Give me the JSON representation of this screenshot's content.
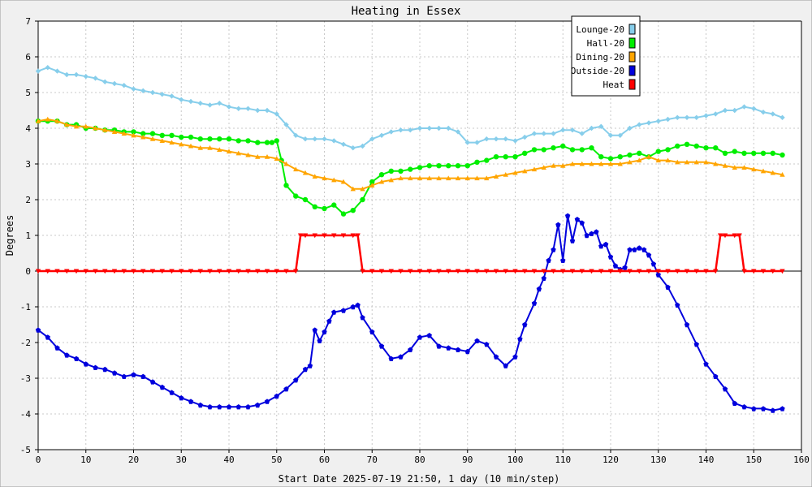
{
  "chart_data": {
    "type": "line",
    "title": "Heating in Essex",
    "xlabel": "Start Date 2025-07-19 21:50, 1 day (10 min/step)",
    "ylabel": "Degrees",
    "xlim": [
      0,
      160
    ],
    "ylim": [
      -5,
      7
    ],
    "xticks": [
      0,
      10,
      20,
      30,
      40,
      50,
      60,
      70,
      80,
      90,
      100,
      110,
      120,
      130,
      140,
      150,
      160
    ],
    "yticks": [
      -5,
      -4,
      -3,
      -2,
      -1,
      0,
      1,
      2,
      3,
      4,
      5,
      6,
      7
    ],
    "grid": true,
    "legend_position": "top-right",
    "series": [
      {
        "name": "Lounge-20",
        "color": "#87ceeb",
        "marker": "diamond",
        "x": [
          0,
          2,
          4,
          6,
          8,
          10,
          12,
          14,
          16,
          18,
          20,
          22,
          24,
          26,
          28,
          30,
          32,
          34,
          36,
          38,
          40,
          42,
          44,
          46,
          48,
          50,
          52,
          54,
          56,
          58,
          60,
          62,
          64,
          66,
          68,
          70,
          72,
          74,
          76,
          78,
          80,
          82,
          84,
          86,
          88,
          90,
          92,
          94,
          96,
          98,
          100,
          102,
          104,
          106,
          108,
          110,
          112,
          114,
          116,
          118,
          120,
          122,
          124,
          126,
          128,
          130,
          132,
          134,
          136,
          138,
          140,
          142,
          144,
          146,
          148,
          150,
          152,
          154,
          156
        ],
        "y": [
          5.6,
          5.7,
          5.6,
          5.5,
          5.5,
          5.45,
          5.4,
          5.3,
          5.25,
          5.2,
          5.1,
          5.05,
          5.0,
          4.95,
          4.9,
          4.8,
          4.75,
          4.7,
          4.65,
          4.7,
          4.6,
          4.55,
          4.55,
          4.5,
          4.5,
          4.4,
          4.1,
          3.8,
          3.7,
          3.7,
          3.7,
          3.65,
          3.55,
          3.45,
          3.5,
          3.7,
          3.8,
          3.9,
          3.95,
          3.95,
          4.0,
          4.0,
          4.0,
          4.0,
          3.9,
          3.6,
          3.6,
          3.7,
          3.7,
          3.7,
          3.65,
          3.75,
          3.85,
          3.85,
          3.85,
          3.95,
          3.95,
          3.85,
          4.0,
          4.05,
          3.8,
          3.8,
          4.0,
          4.1,
          4.15,
          4.2,
          4.25,
          4.3,
          4.3,
          4.3,
          4.35,
          4.4,
          4.5,
          4.5,
          4.6,
          4.55,
          4.45,
          4.4,
          4.3
        ]
      },
      {
        "name": "Hall-20",
        "color": "#00ee00",
        "marker": "circle",
        "x": [
          0,
          2,
          4,
          6,
          8,
          10,
          12,
          14,
          16,
          18,
          20,
          22,
          24,
          26,
          28,
          30,
          32,
          34,
          36,
          38,
          40,
          42,
          44,
          46,
          48,
          49,
          50,
          51,
          52,
          54,
          56,
          58,
          60,
          62,
          64,
          66,
          68,
          70,
          72,
          74,
          76,
          78,
          80,
          82,
          84,
          86,
          88,
          90,
          92,
          94,
          96,
          98,
          100,
          102,
          104,
          106,
          108,
          110,
          112,
          114,
          116,
          118,
          120,
          122,
          124,
          126,
          128,
          130,
          132,
          134,
          136,
          138,
          140,
          142,
          144,
          146,
          148,
          150,
          152,
          154,
          156
        ],
        "y": [
          4.2,
          4.2,
          4.2,
          4.1,
          4.1,
          4.0,
          4.0,
          3.95,
          3.95,
          3.9,
          3.9,
          3.85,
          3.85,
          3.8,
          3.8,
          3.75,
          3.75,
          3.7,
          3.7,
          3.7,
          3.7,
          3.65,
          3.65,
          3.6,
          3.6,
          3.6,
          3.65,
          3.1,
          2.4,
          2.1,
          2.0,
          1.8,
          1.75,
          1.85,
          1.6,
          1.7,
          2.0,
          2.5,
          2.7,
          2.8,
          2.8,
          2.85,
          2.9,
          2.95,
          2.95,
          2.95,
          2.95,
          2.95,
          3.05,
          3.1,
          3.2,
          3.2,
          3.2,
          3.3,
          3.4,
          3.4,
          3.45,
          3.5,
          3.4,
          3.4,
          3.45,
          3.2,
          3.15,
          3.2,
          3.25,
          3.3,
          3.2,
          3.35,
          3.4,
          3.5,
          3.55,
          3.5,
          3.45,
          3.45,
          3.3,
          3.35,
          3.3,
          3.3,
          3.3,
          3.3,
          3.25
        ]
      },
      {
        "name": "Dining-20",
        "color": "#ffa500",
        "marker": "triangle",
        "x": [
          0,
          2,
          4,
          6,
          8,
          10,
          12,
          14,
          16,
          18,
          20,
          22,
          24,
          26,
          28,
          30,
          32,
          34,
          36,
          38,
          40,
          42,
          44,
          46,
          48,
          50,
          52,
          54,
          56,
          58,
          60,
          62,
          64,
          66,
          68,
          70,
          72,
          74,
          76,
          78,
          80,
          82,
          84,
          86,
          88,
          90,
          92,
          94,
          96,
          98,
          100,
          102,
          104,
          106,
          108,
          110,
          112,
          114,
          116,
          118,
          120,
          122,
          124,
          126,
          128,
          130,
          132,
          134,
          136,
          138,
          140,
          142,
          144,
          146,
          148,
          150,
          152,
          154,
          156
        ],
        "y": [
          4.2,
          4.25,
          4.2,
          4.1,
          4.05,
          4.05,
          4.0,
          3.95,
          3.9,
          3.85,
          3.8,
          3.75,
          3.7,
          3.65,
          3.6,
          3.55,
          3.5,
          3.45,
          3.45,
          3.4,
          3.35,
          3.3,
          3.25,
          3.2,
          3.2,
          3.15,
          3.0,
          2.85,
          2.75,
          2.65,
          2.6,
          2.55,
          2.5,
          2.3,
          2.3,
          2.4,
          2.5,
          2.55,
          2.6,
          2.6,
          2.6,
          2.6,
          2.6,
          2.6,
          2.6,
          2.6,
          2.6,
          2.6,
          2.65,
          2.7,
          2.75,
          2.8,
          2.85,
          2.9,
          2.95,
          2.95,
          3.0,
          3.0,
          3.0,
          3.0,
          3.0,
          3.0,
          3.05,
          3.1,
          3.2,
          3.1,
          3.1,
          3.05,
          3.05,
          3.05,
          3.05,
          3.0,
          2.95,
          2.9,
          2.9,
          2.85,
          2.8,
          2.75,
          2.7
        ]
      },
      {
        "name": "Outside-20",
        "color": "#0000dd",
        "marker": "pentagon",
        "x": [
          0,
          2,
          4,
          6,
          8,
          10,
          12,
          14,
          16,
          18,
          20,
          22,
          24,
          26,
          28,
          30,
          32,
          34,
          36,
          38,
          40,
          42,
          44,
          46,
          48,
          50,
          52,
          54,
          56,
          57,
          58,
          59,
          60,
          61,
          62,
          64,
          66,
          67,
          68,
          70,
          72,
          74,
          76,
          78,
          80,
          82,
          84,
          86,
          88,
          90,
          92,
          94,
          96,
          98,
          100,
          101,
          102,
          104,
          105,
          106,
          107,
          108,
          109,
          110,
          111,
          112,
          113,
          114,
          115,
          116,
          117,
          118,
          119,
          120,
          121,
          122,
          123,
          124,
          125,
          126,
          127,
          128,
          129,
          130,
          132,
          134,
          136,
          138,
          140,
          142,
          144,
          146,
          148,
          150,
          152,
          154,
          156
        ],
        "y": [
          -1.65,
          -1.85,
          -2.15,
          -2.35,
          -2.45,
          -2.6,
          -2.7,
          -2.75,
          -2.85,
          -2.95,
          -2.9,
          -2.95,
          -3.1,
          -3.25,
          -3.4,
          -3.55,
          -3.65,
          -3.75,
          -3.8,
          -3.8,
          -3.8,
          -3.8,
          -3.8,
          -3.75,
          -3.65,
          -3.5,
          -3.3,
          -3.05,
          -2.75,
          -2.65,
          -1.65,
          -1.95,
          -1.7,
          -1.4,
          -1.15,
          -1.1,
          -1.0,
          -0.95,
          -1.3,
          -1.7,
          -2.1,
          -2.45,
          -2.4,
          -2.2,
          -1.85,
          -1.8,
          -2.1,
          -2.15,
          -2.2,
          -2.25,
          -1.95,
          -2.05,
          -2.4,
          -2.65,
          -2.4,
          -1.9,
          -1.5,
          -0.9,
          -0.5,
          -0.2,
          0.3,
          0.6,
          1.3,
          0.3,
          1.55,
          0.85,
          1.45,
          1.35,
          1.0,
          1.05,
          1.1,
          0.7,
          0.75,
          0.4,
          0.15,
          0.05,
          0.1,
          0.6,
          0.6,
          0.65,
          0.6,
          0.45,
          0.2,
          -0.1,
          -0.45,
          -0.95,
          -1.5,
          -2.05,
          -2.6,
          -2.95,
          -3.3,
          -3.7,
          -3.8,
          -3.85,
          -3.85,
          -3.9,
          -3.85
        ]
      },
      {
        "name": "Heat",
        "color": "#ff0000",
        "marker": "triangle-down",
        "x": [
          0,
          2,
          4,
          6,
          8,
          10,
          12,
          14,
          16,
          18,
          20,
          22,
          24,
          26,
          28,
          30,
          32,
          34,
          36,
          38,
          40,
          42,
          44,
          46,
          48,
          50,
          52,
          54,
          55,
          56,
          58,
          60,
          62,
          64,
          66,
          67,
          68,
          70,
          72,
          74,
          76,
          78,
          80,
          82,
          84,
          86,
          88,
          90,
          92,
          94,
          96,
          98,
          100,
          102,
          104,
          106,
          108,
          110,
          112,
          114,
          116,
          118,
          120,
          122,
          124,
          126,
          128,
          130,
          132,
          134,
          136,
          138,
          140,
          142,
          143,
          144,
          146,
          147,
          148,
          150,
          152,
          154,
          156
        ],
        "y": [
          0,
          0,
          0,
          0,
          0,
          0,
          0,
          0,
          0,
          0,
          0,
          0,
          0,
          0,
          0,
          0,
          0,
          0,
          0,
          0,
          0,
          0,
          0,
          0,
          0,
          0,
          0,
          0,
          1,
          1,
          1,
          1,
          1,
          1,
          1,
          1,
          0,
          0,
          0,
          0,
          0,
          0,
          0,
          0,
          0,
          0,
          0,
          0,
          0,
          0,
          0,
          0,
          0,
          0,
          0,
          0,
          0,
          0,
          0,
          0,
          0,
          0,
          0,
          0,
          0,
          0,
          0,
          0,
          0,
          0,
          0,
          0,
          0,
          0,
          1,
          1,
          1,
          1,
          0,
          0,
          0,
          0,
          0
        ]
      }
    ]
  }
}
